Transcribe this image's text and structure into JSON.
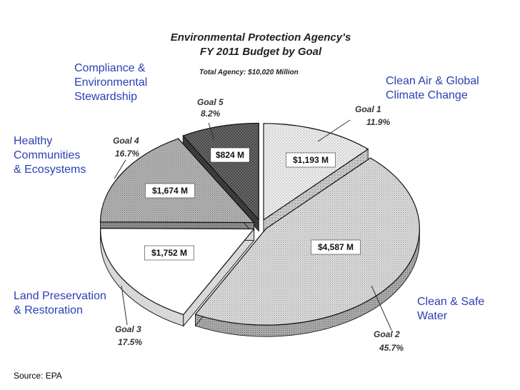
{
  "chart_data": {
    "type": "pie",
    "title_line1": "Environmental Protection Agency’s",
    "title_line2": "FY 2011 Budget by Goal",
    "subtitle": "Total Agency: $10,020 Million",
    "slices": [
      {
        "goal": "Goal 1",
        "percent": 11.9,
        "percent_label": "11.9%",
        "amount_label": "$1,193 M",
        "category": "Clean Air & Global\nClimate Change",
        "fill": "dots"
      },
      {
        "goal": "Goal 2",
        "percent": 45.7,
        "percent_label": "45.7%",
        "amount_label": "$4,587 M",
        "category": "Clean & Safe\nWater",
        "fill": "fine"
      },
      {
        "goal": "Goal 3",
        "percent": 17.5,
        "percent_label": "17.5%",
        "amount_label": "$1,752 M",
        "category": "Land Preservation\n& Restoration",
        "fill": "white"
      },
      {
        "goal": "Goal 4",
        "percent": 16.7,
        "percent_label": "16.7%",
        "amount_label": "$1,674 M",
        "category": "Healthy\nCommunities\n& Ecosystems",
        "fill": "medium"
      },
      {
        "goal": "Goal 5",
        "percent": 8.2,
        "percent_label": "8.2%",
        "amount_label": "$824 M",
        "category": "Compliance &\nEnvironmental\nStewardship",
        "fill": "dark"
      }
    ],
    "colors": {
      "category_text": "#2b3fb3"
    }
  },
  "source": "Source:  EPA"
}
